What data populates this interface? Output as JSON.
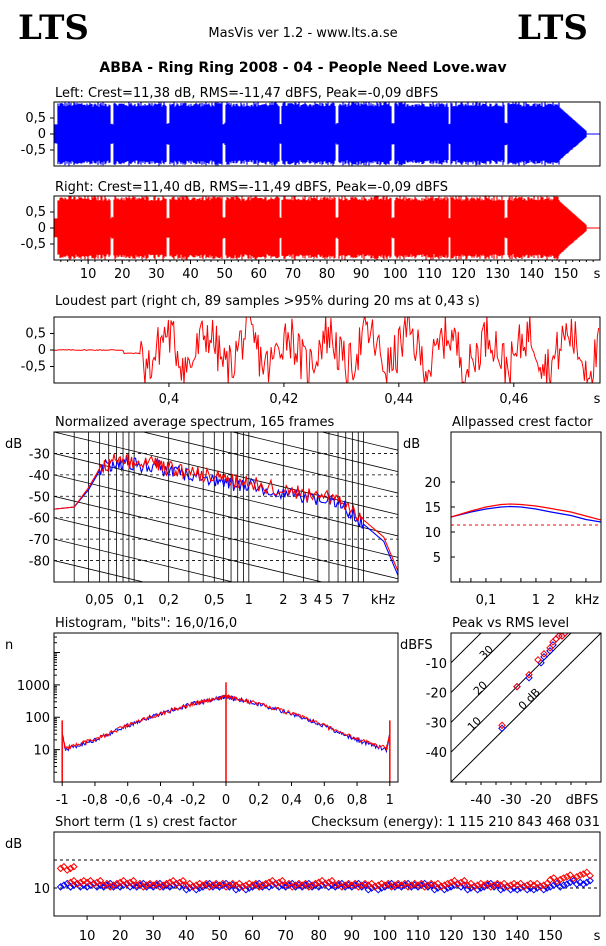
{
  "header": {
    "logo_left": "LTS",
    "logo_right": "LTS",
    "app_title": "MasVis ver 1.2 - www.lts.a.se",
    "file_title": "ABBA - Ring Ring 2008 - 04 - People Need Love.wav"
  },
  "colors": {
    "left": "#0000ff",
    "right": "#ff0000",
    "ref": "#000000"
  },
  "chart_data": [
    {
      "type": "area",
      "title": "Left: Crest=11,38 dB, RMS=-11,47 dBFS, Peak=-0,09 dBFS",
      "ytick_labels": [
        "0,5",
        "0",
        "-0,5"
      ],
      "yticks": [
        0.5,
        0,
        -0.5
      ],
      "ylim": [
        -1,
        1
      ],
      "xlim": [
        0,
        160
      ],
      "grid": false
    },
    {
      "type": "area",
      "title": "Right: Crest=11,40 dB, RMS=-11,49 dBFS, Peak=-0,09 dBFS",
      "ytick_labels": [
        "0,5",
        "0",
        "-0,5"
      ],
      "yticks": [
        0.5,
        0,
        -0.5
      ],
      "xtick_labels": [
        "10",
        "20",
        "30",
        "40",
        "50",
        "60",
        "70",
        "80",
        "90",
        "100",
        "110",
        "120",
        "130",
        "140",
        "150",
        "s"
      ],
      "xticks": [
        10,
        20,
        30,
        40,
        50,
        60,
        70,
        80,
        90,
        100,
        110,
        120,
        130,
        140,
        150
      ],
      "xunit": "s",
      "ylim": [
        -1,
        1
      ],
      "xlim": [
        0,
        160
      ],
      "grid": false
    },
    {
      "type": "line",
      "title": "Loudest part (right ch, 89 samples >95% during 20 ms at 0,43 s)",
      "ytick_labels": [
        "0,5",
        "0",
        "-0,5"
      ],
      "yticks": [
        0.5,
        0,
        -0.5
      ],
      "xtick_labels": [
        "0,4",
        "0,42",
        "0,44",
        "0,46",
        "s"
      ],
      "xticks": [
        0.4,
        0.42,
        0.44,
        0.46
      ],
      "xunit": "s",
      "xlim": [
        0.38,
        0.475
      ],
      "ylim": [
        -1,
        1
      ]
    },
    {
      "type": "line",
      "title": "Normalized average spectrum, 165 frames",
      "ylabel": "dB",
      "ytick_labels": [
        "-30",
        "-40",
        "-50",
        "-60",
        "-70",
        "-80"
      ],
      "yticks": [
        -30,
        -40,
        -50,
        -60,
        -70,
        -80
      ],
      "xtick_labels": [
        "0,05",
        "0,1",
        "0,2",
        "0,5",
        "1",
        "2",
        "3",
        "4",
        "5",
        "7",
        "kHz"
      ],
      "xticks": [
        0.05,
        0.1,
        0.2,
        0.5,
        1,
        2,
        3,
        4,
        5,
        7
      ],
      "xunit": "kHz",
      "xscale": "log",
      "xlim": [
        0.02,
        20
      ],
      "ylim": [
        -90,
        -20
      ],
      "grid": true,
      "series": [
        {
          "color": "#0000ff",
          "x": [
            0.02,
            0.03,
            0.04,
            0.05,
            0.07,
            0.1,
            0.15,
            0.2,
            0.3,
            0.5,
            0.7,
            1,
            2,
            3,
            5,
            7,
            10,
            15,
            20
          ],
          "y": [
            -56,
            -55,
            -47,
            -38,
            -34,
            -35,
            -36,
            -38,
            -40,
            -42,
            -44,
            -45,
            -48,
            -50,
            -52,
            -55,
            -63,
            -71,
            -87
          ]
        },
        {
          "color": "#ff0000",
          "x": [
            0.02,
            0.03,
            0.04,
            0.05,
            0.07,
            0.1,
            0.15,
            0.2,
            0.3,
            0.5,
            0.7,
            1,
            2,
            3,
            5,
            7,
            10,
            15,
            20
          ],
          "y": [
            -56,
            -55,
            -46,
            -37,
            -33,
            -34,
            -35,
            -37,
            -39,
            -41,
            -43,
            -44,
            -47,
            -49,
            -51,
            -54,
            -61,
            -69,
            -85
          ]
        }
      ]
    },
    {
      "type": "line",
      "title": "Allpassed crest factor",
      "ylabel": "dB",
      "ytick_labels": [
        "20",
        "15",
        "10",
        "5"
      ],
      "yticks": [
        20,
        15,
        10,
        5
      ],
      "xtick_labels": [
        "0,1",
        "1",
        "2",
        "kHz"
      ],
      "xticks": [
        0.1,
        1,
        2
      ],
      "xunit": "kHz",
      "xscale": "log",
      "xlim": [
        0.02,
        20
      ],
      "ylim": [
        0,
        30
      ],
      "reference_line": 11.4,
      "series": [
        {
          "color": "#0000ff",
          "x": [
            0.02,
            0.05,
            0.1,
            0.2,
            0.3,
            0.5,
            1,
            2,
            5,
            10,
            20
          ],
          "y": [
            13,
            14,
            14.6,
            15,
            15.1,
            15,
            14.6,
            14,
            13.3,
            12.5,
            12
          ]
        },
        {
          "color": "#ff0000",
          "x": [
            0.02,
            0.05,
            0.1,
            0.2,
            0.3,
            0.5,
            1,
            2,
            5,
            10,
            20
          ],
          "y": [
            13,
            14.2,
            15,
            15.5,
            15.6,
            15.5,
            15.2,
            14.7,
            14,
            13.2,
            12.4
          ]
        }
      ]
    },
    {
      "type": "line",
      "title": "Histogram, \"bits\": 16,0/16,0",
      "ylabel": "n",
      "yscale": "log",
      "ytick_labels": [
        "1000",
        "100",
        "10"
      ],
      "yticks": [
        1000,
        100,
        10
      ],
      "xtick_labels": [
        "-1",
        "-0,8",
        "-0,6",
        "-0,4",
        "-0,2",
        "0",
        "0,2",
        "0,4",
        "0,6",
        "0,8",
        "1"
      ],
      "xticks": [
        -1,
        -0.8,
        -0.6,
        -0.4,
        -0.2,
        0,
        0.2,
        0.4,
        0.6,
        0.8,
        1
      ],
      "xlim": [
        -1.05,
        1.05
      ],
      "ylim": [
        1,
        40000
      ],
      "series": [
        {
          "color": "#0000ff",
          "x": [
            -1,
            -0.98,
            -0.8,
            -0.6,
            -0.4,
            -0.2,
            -0.05,
            0,
            0.05,
            0.2,
            0.4,
            0.6,
            0.8,
            0.98,
            1
          ],
          "y": [
            30,
            10,
            20,
            55,
            130,
            260,
            380,
            450,
            380,
            260,
            130,
            55,
            20,
            10,
            30
          ]
        },
        {
          "color": "#ff0000",
          "x": [
            -1,
            -0.98,
            -0.8,
            -0.6,
            -0.4,
            -0.2,
            -0.05,
            0,
            0.05,
            0.2,
            0.4,
            0.6,
            0.8,
            0.98,
            1
          ],
          "y": [
            30,
            11,
            21,
            56,
            132,
            262,
            382,
            450,
            382,
            262,
            132,
            56,
            21,
            11,
            30
          ]
        }
      ]
    },
    {
      "type": "scatter",
      "title": "Peak vs RMS level",
      "ylabel": "dBFS",
      "xlabel": "dBFS",
      "ytick_labels": [
        "-10",
        "-20",
        "-30",
        "-40"
      ],
      "yticks": [
        -10,
        -20,
        -30,
        -40
      ],
      "xtick_labels": [
        "-40",
        "-30",
        "-20",
        "dBFS"
      ],
      "xticks": [
        -40,
        -30,
        -20
      ],
      "xlim": [
        -50,
        0
      ],
      "ylim": [
        -50,
        0
      ],
      "diagonal_labels": [
        "40",
        "30",
        "20",
        "10",
        "0 dB"
      ],
      "series": [
        {
          "color": "#0000ff",
          "x": [
            -33,
            -28,
            -24,
            -20,
            -19,
            -17,
            -16,
            -15,
            -14,
            -13,
            -12
          ],
          "y": [
            -32,
            -18,
            -15,
            -10,
            -8,
            -6,
            -4,
            -2,
            -1,
            -1,
            0
          ]
        },
        {
          "color": "#ff0000",
          "x": [
            -33,
            -28,
            -24,
            -21,
            -19,
            -17,
            -16,
            -15,
            -14,
            -13,
            -12
          ],
          "y": [
            -31,
            -18,
            -14,
            -9,
            -7,
            -5,
            -3,
            -2,
            -1,
            -1,
            0
          ]
        }
      ]
    },
    {
      "type": "scatter",
      "title": "Short term (1 s) crest factor",
      "checksum_label": "Checksum (energy):  1 115 210 843 468 031",
      "ylabel": "dB",
      "ytick_labels": [
        "10"
      ],
      "yticks": [
        10
      ],
      "xtick_labels": [
        "10",
        "20",
        "30",
        "40",
        "50",
        "60",
        "70",
        "80",
        "90",
        "100",
        "110",
        "120",
        "130",
        "140",
        "150",
        "s"
      ],
      "xticks": [
        10,
        20,
        30,
        40,
        50,
        60,
        70,
        80,
        90,
        100,
        110,
        120,
        130,
        140,
        150
      ],
      "xunit": "s",
      "xlim": [
        0,
        165
      ],
      "ylim": [
        0,
        30
      ],
      "ref_lines": [
        10,
        20
      ],
      "series": [
        {
          "color": "#0000ff",
          "x": [
            2,
            5,
            10,
            15,
            20,
            25,
            30,
            35,
            40,
            45,
            50,
            55,
            60,
            65,
            70,
            75,
            80,
            85,
            90,
            95,
            100,
            105,
            110,
            115,
            120,
            125,
            130,
            135,
            140,
            145,
            150,
            155,
            160
          ],
          "y": [
            11,
            11,
            11,
            11,
            11,
            11,
            11,
            11,
            10,
            11,
            11,
            10,
            11,
            11,
            11,
            11,
            11,
            11,
            11,
            10,
            11,
            11,
            11,
            10,
            11,
            10,
            11,
            10,
            10,
            10,
            11,
            12,
            12
          ]
        },
        {
          "color": "#ff0000",
          "x": [
            2,
            5,
            10,
            15,
            20,
            25,
            30,
            35,
            40,
            45,
            50,
            55,
            60,
            65,
            70,
            75,
            80,
            85,
            90,
            95,
            100,
            105,
            110,
            115,
            120,
            125,
            130,
            135,
            140,
            145,
            150,
            155,
            160
          ],
          "y": [
            17,
            12,
            12,
            11,
            12,
            11,
            11,
            12,
            11,
            11,
            11,
            11,
            11,
            12,
            11,
            11,
            12,
            11,
            11,
            11,
            11,
            11,
            11,
            11,
            12,
            11,
            11,
            11,
            11,
            11,
            13,
            14,
            15
          ]
        }
      ]
    }
  ]
}
